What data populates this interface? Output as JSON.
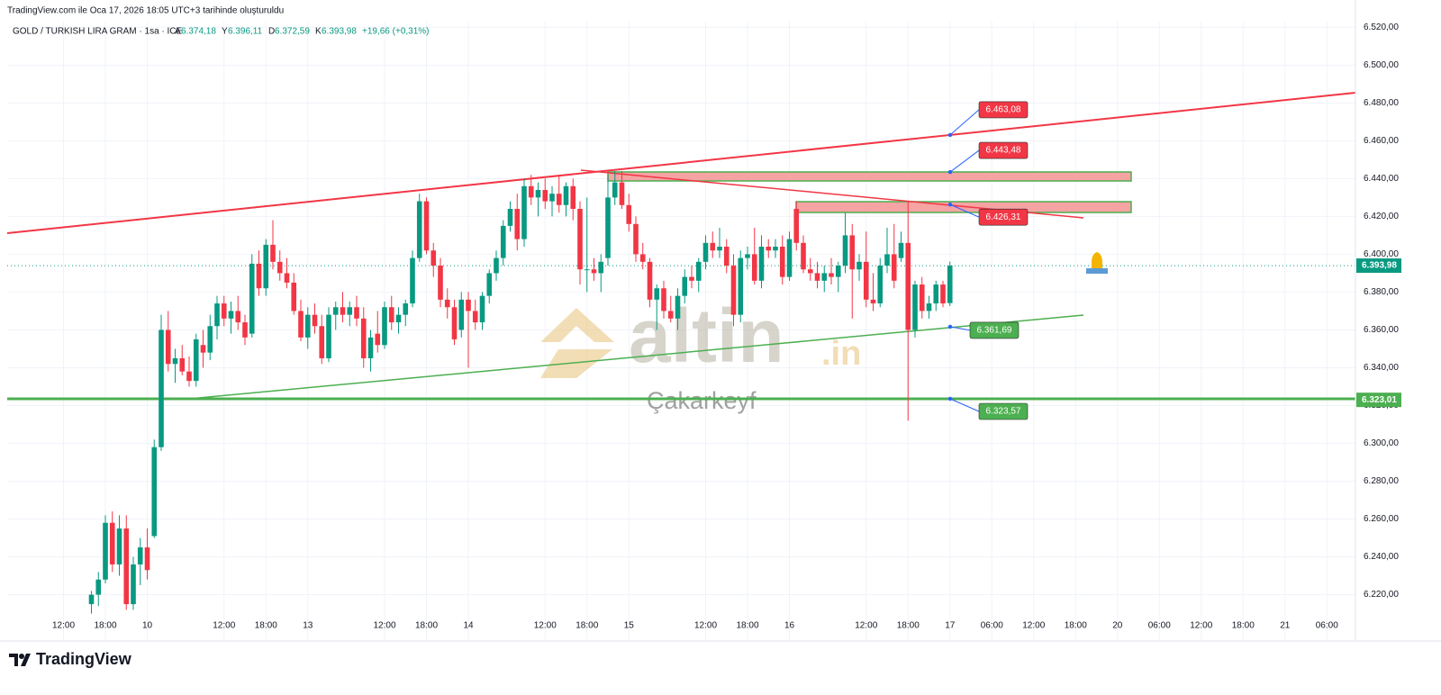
{
  "chart_data": {
    "type": "candlestick",
    "caption": "TradingView.com ile Oca 17, 2026 18:05 UTC+3 tarihinde oluşturuldu",
    "title": "GOLD / TURKISH LIRA GRAM · 1sa · ICE",
    "ohlc_header": [
      {
        "label": "A",
        "value": "6.374,18"
      },
      {
        "label": "Y",
        "value": "6.396,11"
      },
      {
        "label": "D",
        "value": "6.372,59"
      },
      {
        "label": "K",
        "value": "6.393,98"
      }
    ],
    "change": "+19,66 (+0,31%)",
    "watermark": {
      "brand": "altin",
      "suffix": ".in",
      "author": "Çakarkeyf"
    },
    "footer": "TradingView",
    "up_color": "#089981",
    "down_color": "#f23645",
    "categories": [
      null,
      null,
      null,
      null,
      null,
      null,
      "12:00",
      null,
      null,
      null,
      null,
      null,
      "18:00",
      null,
      null,
      null,
      null,
      null,
      "10",
      null,
      null,
      null,
      null,
      null,
      null,
      null,
      null,
      null,
      null,
      "12:00",
      null,
      null,
      null,
      null,
      null,
      "18:00",
      null,
      null,
      null,
      null,
      null,
      "13",
      null,
      null,
      null,
      null,
      null,
      null,
      null,
      null,
      null,
      null,
      "12:00",
      null,
      null,
      null,
      null,
      null,
      "18:00",
      null,
      null,
      null,
      null,
      null,
      "14",
      null,
      null,
      null,
      null,
      null,
      null,
      null,
      null,
      null,
      null,
      "12:00",
      null,
      null,
      null,
      null,
      null,
      "18:00",
      null,
      null,
      null,
      null,
      null,
      "15",
      null,
      null,
      null,
      null,
      null,
      null,
      null,
      null,
      null,
      null,
      "12:00",
      null,
      null,
      null,
      null,
      null,
      "18:00",
      null,
      null,
      null,
      null,
      null,
      "16",
      null,
      null,
      null,
      null,
      null,
      null,
      null,
      null,
      null,
      null,
      "12:00",
      null,
      null,
      null,
      null,
      null,
      "18:00",
      null,
      null,
      null,
      null,
      null,
      "17",
      null,
      null,
      null,
      null,
      null,
      "06:00",
      null,
      null,
      null,
      null,
      null,
      "12:00",
      null,
      null,
      null,
      null,
      null,
      "18:00",
      null,
      null,
      null,
      null,
      null,
      "20",
      null,
      null,
      null,
      null,
      null,
      "06:00",
      null,
      null,
      null,
      null,
      null,
      "12:00",
      null,
      null,
      null,
      null,
      null,
      "18:00",
      null,
      null,
      null,
      null,
      null,
      "21",
      null,
      null,
      null,
      null,
      null,
      "06:00"
    ],
    "open": [
      null,
      null,
      null,
      null,
      null,
      null,
      null,
      null,
      null,
      null,
      6215,
      6220,
      6228,
      6258,
      6236,
      6255,
      6215,
      6236,
      6245,
      6251,
      6298,
      6360,
      6342,
      6345,
      6338,
      6333,
      6352,
      6348,
      6362,
      6374,
      6366,
      6370,
      6364,
      6358,
      6395,
      6382,
      6405,
      6396,
      6390,
      6385,
      6370,
      6356,
      6368,
      6362,
      6345,
      6368,
      6372,
      6368,
      6372,
      6366,
      6345,
      6358,
      6352,
      6372,
      6364,
      6368,
      6374,
      6398,
      6428,
      6402,
      6394,
      6376,
      6372,
      6360,
      6376,
      6370,
      6364,
      6378,
      6390,
      6398,
      6415,
      6424,
      6408,
      6436,
      6430,
      6434,
      6428,
      6432,
      6426,
      6436,
      6424,
      6392,
      6392,
      6390,
      6398,
      6430,
      6438,
      6426,
      6416,
      6400,
      6396,
      6376,
      6382,
      6370,
      6366,
      6378,
      6388,
      6386,
      6396,
      6406,
      6402,
      6404,
      6394,
      6368,
      6398,
      6400,
      6386,
      6404,
      6402,
      6404,
      6388,
      6424,
      6406,
      6392,
      6390,
      6386,
      6390,
      6388,
      6394,
      6410,
      6392,
      6396,
      6376,
      6374,
      6394,
      6400,
      6398,
      6406,
      6360,
      6384,
      6370,
      6374,
      6384,
      6374.18,
      null,
      null,
      null,
      null,
      null,
      null,
      null,
      null,
      null,
      null,
      null,
      null,
      null,
      null,
      null,
      null,
      null,
      null,
      null,
      null,
      null,
      null,
      null,
      null,
      null,
      null,
      null,
      null,
      null,
      null,
      null,
      null,
      null,
      null,
      null,
      null,
      null,
      null,
      null,
      null,
      null,
      null,
      null,
      null,
      null,
      null,
      null,
      null,
      null,
      null,
      null,
      null,
      null,
      null
    ],
    "high": [
      null,
      null,
      null,
      null,
      null,
      null,
      null,
      null,
      null,
      null,
      6222,
      6232,
      6262,
      6264,
      6262,
      6262,
      6240,
      6250,
      6255,
      6302,
      6368,
      6370,
      6350,
      6352,
      6346,
      6358,
      6360,
      6368,
      6378,
      6378,
      6375,
      6378,
      6368,
      6400,
      6402,
      6408,
      6418,
      6402,
      6398,
      6390,
      6376,
      6372,
      6374,
      6368,
      6372,
      6375,
      6380,
      6375,
      6378,
      6372,
      6360,
      6370,
      6375,
      6378,
      6372,
      6376,
      6402,
      6432,
      6430,
      6406,
      6398,
      6382,
      6376,
      6380,
      6380,
      6376,
      6380,
      6392,
      6402,
      6418,
      6428,
      6432,
      6440,
      6442,
      6438,
      6440,
      6436,
      6442,
      6438,
      6440,
      6428,
      6430,
      6398,
      6400,
      6442,
      6444,
      6444,
      6432,
      6420,
      6406,
      6398,
      6384,
      6386,
      6378,
      6382,
      6392,
      6394,
      6398,
      6410,
      6412,
      6414,
      6408,
      6400,
      6402,
      6404,
      6414,
      6410,
      6408,
      6408,
      6410,
      6412,
      6428,
      6410,
      6398,
      6396,
      6394,
      6398,
      6396,
      6422,
      6416,
      6400,
      6412,
      6390,
      6398,
      6414,
      6416,
      6412,
      6428,
      6386,
      6388,
      6378,
      6386,
      6386,
      6396.11,
      null,
      null,
      null,
      null,
      null,
      null,
      null,
      null,
      null,
      null,
      null,
      null,
      null,
      null,
      null,
      null,
      null,
      null,
      null,
      null,
      null,
      null,
      null,
      null,
      null,
      null,
      null,
      null,
      null,
      null,
      null,
      null,
      null,
      null,
      null,
      null,
      null,
      null,
      null,
      null,
      null,
      null,
      null,
      null,
      null,
      null,
      null,
      null,
      null,
      null,
      null,
      null,
      null,
      null
    ],
    "low": [
      null,
      null,
      null,
      null,
      null,
      null,
      null,
      null,
      null,
      null,
      6210,
      6214,
      6226,
      6232,
      6230,
      6212,
      6212,
      6225,
      6228,
      6250,
      6296,
      6338,
      6332,
      6336,
      6330,
      6330,
      6340,
      6344,
      6355,
      6362,
      6358,
      6360,
      6352,
      6356,
      6378,
      6378,
      6392,
      6386,
      6382,
      6368,
      6354,
      6350,
      6358,
      6342,
      6343,
      6360,
      6364,
      6362,
      6362,
      6340,
      6338,
      6348,
      6350,
      6360,
      6358,
      6362,
      6372,
      6396,
      6400,
      6388,
      6372,
      6366,
      6352,
      6356,
      6340,
      6360,
      6360,
      6374,
      6386,
      6394,
      6412,
      6402,
      6404,
      6426,
      6420,
      6424,
      6420,
      6422,
      6420,
      6418,
      6384,
      6380,
      6386,
      6380,
      6394,
      6426,
      6424,
      6412,
      6396,
      6392,
      6372,
      6360,
      6366,
      6364,
      6360,
      6374,
      6382,
      6380,
      6392,
      6398,
      6398,
      6390,
      6362,
      6364,
      6392,
      6384,
      6382,
      6398,
      6398,
      6384,
      6386,
      6402,
      6390,
      6386,
      6382,
      6380,
      6384,
      6380,
      6390,
      6366,
      6386,
      6372,
      6370,
      6372,
      6390,
      6382,
      6396,
      6312,
      6356,
      6366,
      6366,
      6370,
      6372,
      6372.59,
      null,
      null,
      null,
      null,
      null,
      null,
      null,
      null,
      null,
      null,
      null,
      null,
      null,
      null,
      null,
      null,
      null,
      null,
      null,
      null,
      null,
      null,
      null,
      null,
      null,
      null,
      null,
      null,
      null,
      null,
      null,
      null,
      null,
      null,
      null,
      null,
      null,
      null,
      null,
      null,
      null,
      null,
      null,
      null,
      null,
      null,
      null,
      null,
      null,
      null,
      null,
      null,
      null,
      null
    ],
    "close": [
      null,
      null,
      null,
      null,
      null,
      null,
      null,
      null,
      null,
      null,
      6220,
      6228,
      6258,
      6236,
      6255,
      6215,
      6236,
      6245,
      6233,
      6298,
      6360,
      6342,
      6345,
      6338,
      6333,
      6355,
      6348,
      6362,
      6374,
      6366,
      6370,
      6364,
      6356,
      6395,
      6382,
      6405,
      6396,
      6390,
      6385,
      6370,
      6356,
      6368,
      6362,
      6345,
      6368,
      6372,
      6368,
      6372,
      6366,
      6345,
      6356,
      6352,
      6372,
      6364,
      6368,
      6374,
      6398,
      6428,
      6402,
      6394,
      6376,
      6372,
      6355,
      6376,
      6370,
      6364,
      6378,
      6390,
      6398,
      6415,
      6424,
      6408,
      6436,
      6430,
      6434,
      6428,
      6432,
      6426,
      6436,
      6424,
      6392,
      6392,
      6390,
      6396,
      6430,
      6438,
      6426,
      6416,
      6400,
      6396,
      6376,
      6382,
      6370,
      6366,
      6378,
      6388,
      6386,
      6396,
      6406,
      6402,
      6404,
      6394,
      6368,
      6398,
      6400,
      6386,
      6404,
      6402,
      6404,
      6388,
      6408,
      6406,
      6392,
      6390,
      6386,
      6390,
      6388,
      6394,
      6410,
      6392,
      6396,
      6376,
      6374,
      6394,
      6400,
      6386,
      6406,
      6360,
      6384,
      6370,
      6374,
      6384,
      6374,
      6393.98,
      null,
      null,
      null,
      null,
      null,
      null,
      null,
      null,
      null,
      null,
      null,
      null,
      null,
      null,
      null,
      null,
      null,
      null,
      null,
      null,
      null,
      null,
      null,
      null,
      null,
      null,
      null,
      null,
      null,
      null,
      null,
      null,
      null,
      null,
      null,
      null,
      null,
      null,
      null,
      null,
      null,
      null,
      null,
      null,
      null,
      null,
      null,
      null,
      null,
      null,
      null,
      null,
      null,
      null
    ],
    "ylim": [
      6206,
      6523
    ],
    "yticks": [
      {
        "value": 6220,
        "label": "6.220,00"
      },
      {
        "value": 6240,
        "label": "6.240,00"
      },
      {
        "value": 6260,
        "label": "6.260,00"
      },
      {
        "value": 6280,
        "label": "6.280,00"
      },
      {
        "value": 6300,
        "label": "6.300,00"
      },
      {
        "value": 6320,
        "label": "6.320,00"
      },
      {
        "value": 6340,
        "label": "6.340,00"
      },
      {
        "value": 6360,
        "label": "6.360,00"
      },
      {
        "value": 6380,
        "label": "6.380,00"
      },
      {
        "value": 6400,
        "label": "6.400,00"
      },
      {
        "value": 6420,
        "label": "6.420,00"
      },
      {
        "value": 6440,
        "label": "6.440,00"
      },
      {
        "value": 6460,
        "label": "6.460,00"
      },
      {
        "value": 6480,
        "label": "6.480,00"
      },
      {
        "value": 6500,
        "label": "6.500,00"
      },
      {
        "value": 6520,
        "label": "6.520,00"
      }
    ],
    "price_labels": [
      {
        "value": 6393.98,
        "label": "6.393,98",
        "color": "#089981"
      },
      {
        "value": 6323.01,
        "label": "6.323,01",
        "color": "#4caf50"
      }
    ],
    "annotations": [
      {
        "value": 6463.08,
        "label": "6.463,08",
        "color": "#f23645"
      },
      {
        "value": 6443.48,
        "label": "6.443,48",
        "color": "#f23645"
      },
      {
        "value": 6426.31,
        "label": "6.426,31",
        "color": "#f23645"
      },
      {
        "value": 6361.69,
        "label": "6.361,69",
        "color": "#4caf50"
      },
      {
        "value": 6323.57,
        "label": "6.323,57",
        "color": "#4caf50"
      }
    ]
  }
}
